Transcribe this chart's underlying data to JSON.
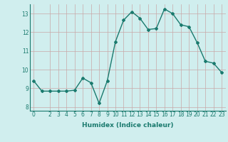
{
  "x": [
    0,
    1,
    2,
    3,
    4,
    5,
    6,
    7,
    8,
    9,
    10,
    11,
    12,
    13,
    14,
    15,
    16,
    17,
    18,
    19,
    20,
    21,
    22,
    23
  ],
  "y": [
    9.4,
    8.85,
    8.85,
    8.85,
    8.85,
    8.9,
    9.55,
    9.3,
    8.2,
    9.4,
    11.5,
    12.65,
    13.1,
    12.75,
    12.15,
    12.2,
    13.25,
    13.0,
    12.4,
    12.3,
    11.45,
    10.45,
    10.35,
    9.85
  ],
  "line_color": "#1a7a6e",
  "marker": "D",
  "markersize": 2.0,
  "linewidth": 1.0,
  "bg_color": "#d0eeee",
  "grid_color": "#c8a8a8",
  "xlabel": "Humidex (Indice chaleur)",
  "xlim": [
    -0.5,
    23.5
  ],
  "ylim": [
    7.8,
    13.5
  ],
  "yticks": [
    8,
    9,
    10,
    11,
    12,
    13
  ],
  "xticks": [
    0,
    2,
    3,
    4,
    5,
    6,
    7,
    8,
    9,
    10,
    11,
    12,
    13,
    14,
    15,
    16,
    17,
    18,
    19,
    20,
    21,
    22,
    23
  ],
  "xtick_labels": [
    "0",
    "2",
    "3",
    "4",
    "5",
    "6",
    "7",
    "8",
    "9",
    "10",
    "11",
    "12",
    "13",
    "14",
    "15",
    "16",
    "17",
    "18",
    "19",
    "20",
    "21",
    "22",
    "23"
  ],
  "xlabel_fontsize": 6.5,
  "tick_fontsize": 5.5
}
